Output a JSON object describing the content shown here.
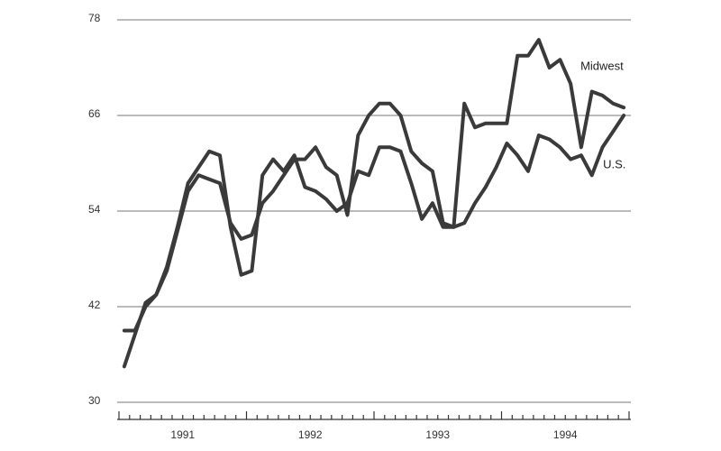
{
  "chart_data": {
    "type": "line",
    "categories": [
      null,
      null,
      null,
      null,
      null,
      null,
      "1991",
      null,
      null,
      null,
      null,
      null,
      null,
      null,
      null,
      null,
      null,
      null,
      "1992",
      null,
      null,
      null,
      null,
      null,
      null,
      null,
      null,
      null,
      null,
      null,
      "1993",
      null,
      null,
      null,
      null,
      null,
      null,
      null,
      null,
      null,
      null,
      null,
      "1994",
      null,
      null,
      null,
      null,
      null
    ],
    "series": [
      {
        "name": "Midwest",
        "color": "#3a3a3a",
        "values": [
          39,
          39,
          42,
          43.5,
          47,
          52,
          57.5,
          59.5,
          61.5,
          61,
          52,
          46,
          46.5,
          58.5,
          60.5,
          59,
          61,
          57,
          56.5,
          55.5,
          54,
          55,
          59,
          58.5,
          62,
          62,
          61.5,
          57.5,
          53,
          55,
          52,
          52,
          67.5,
          64.5,
          65,
          65,
          65,
          73.5,
          73.5,
          75.5,
          72,
          73,
          70,
          62,
          69,
          68.5,
          67.5,
          67
        ]
      },
      {
        "name": "U.S.",
        "color": "#3a3a3a",
        "values": [
          34.5,
          38.5,
          42.5,
          43.5,
          46.5,
          51.5,
          56.5,
          58.5,
          58,
          57.5,
          52.5,
          50.5,
          51,
          55,
          56.5,
          58.5,
          60.5,
          60.5,
          62,
          59.5,
          58.5,
          53.5,
          63.5,
          66,
          67.5,
          67.5,
          66,
          61.5,
          60,
          59,
          52.5,
          52,
          52.5,
          55,
          57,
          59.5,
          62.5,
          61,
          59,
          63.5,
          63,
          62,
          60.5,
          61,
          58.5,
          62,
          64,
          66
        ]
      }
    ],
    "ylim": [
      30,
      78
    ],
    "yticks": [
      30,
      42,
      54,
      66,
      78
    ],
    "grid": true
  }
}
